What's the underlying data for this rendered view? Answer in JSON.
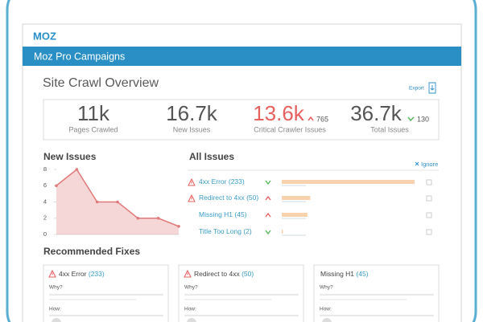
{
  "logo": "MOZ",
  "nav_title": "Moz Pro Campaigns",
  "page_title": "Site Crawl Overview",
  "export": "Export",
  "stats": [
    {
      "value": "11k",
      "label": "Pages Crawled"
    },
    {
      "value": "16.7k",
      "label": "New Issues"
    },
    {
      "value": "13.6k",
      "label": "Critical Crawler Issues",
      "change": 765
    },
    {
      "value": "36.7k",
      "label": "Total Issues",
      "change": 130
    }
  ],
  "chart_data": {
    "type": "area",
    "title": "New Issues",
    "categories": [
      null,
      null,
      null,
      null,
      null,
      null,
      null
    ],
    "values": [
      6,
      8,
      4,
      4,
      2,
      2,
      1
    ],
    "ylim": [
      0,
      8
    ],
    "yticks": [
      0,
      2,
      4,
      6,
      8
    ],
    "color": "#e07a7a"
  },
  "all_issues": {
    "title": "All Issues",
    "ignore": "Ignore",
    "names": [
      "4xx Error",
      "Redirect to 4xx",
      "Missing H1",
      "Title Too Long"
    ],
    "values": [
      233,
      50,
      45,
      2
    ],
    "value_labels": [
      "(233)",
      "(50)",
      "(45)",
      "(2)"
    ]
  },
  "fixes": {
    "title": "Recommended Fixes",
    "cards": [
      {
        "name": "4xx Error",
        "count": "(233)",
        "why": "Why?",
        "how": "How:"
      },
      {
        "name": "Redirect to 4xx",
        "count": "(50)",
        "why": "Why?",
        "how": "How:"
      },
      {
        "name": "Missing H1",
        "count": "(45)",
        "why": "Why?",
        "how": "How:"
      }
    ]
  }
}
